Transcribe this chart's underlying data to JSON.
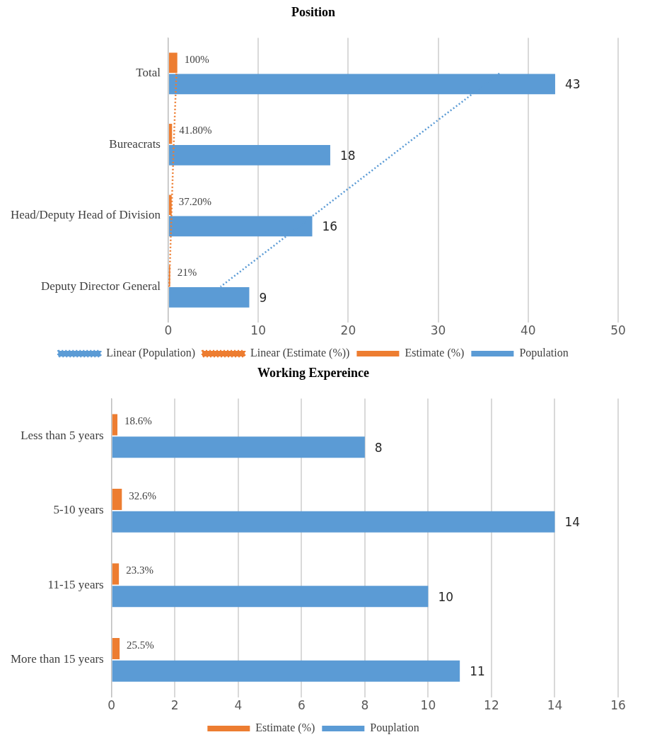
{
  "chart_data": [
    {
      "type": "bar",
      "orientation": "horizontal",
      "title": "Position",
      "categories": [
        "Total",
        "Bureacrats",
        "Head/Deputy Head of Division",
        "Deputy Director General"
      ],
      "series": [
        {
          "name": "Estimate (%)",
          "color": "#ed7d31",
          "values": [
            1,
            0.418,
            0.372,
            0.21
          ],
          "value_labels": [
            "100%",
            "41.80%",
            "37.20%",
            "21%"
          ]
        },
        {
          "name": "Population",
          "color": "#5b9bd5",
          "values": [
            43,
            18,
            16,
            9
          ],
          "value_labels": [
            "43",
            "18",
            "16",
            "9"
          ]
        },
        {
          "name": "Linear (Population)",
          "type": "line",
          "color": "#5b9bd5",
          "line_style": "dotted",
          "marker": "none",
          "values": [
            36.8,
            26.4,
            16.1,
            5.8
          ]
        },
        {
          "name": "Linear (Estimate (%))",
          "type": "line",
          "color": "#ed7d31",
          "line_style": "dotted",
          "marker": "none",
          "values": [
            0.9,
            0.6,
            0.35,
            0.1
          ]
        }
      ],
      "xlim": [
        0,
        50
      ],
      "xticks": [
        0,
        10,
        20,
        30,
        40,
        50
      ],
      "grid": "x",
      "legend": "bottom"
    },
    {
      "type": "bar",
      "orientation": "horizontal",
      "title": "Working Expereince",
      "categories": [
        "Less than 5 years",
        "5-10 years",
        "11-15 years",
        "More than 15 years"
      ],
      "series": [
        {
          "name": "Estimate (%)",
          "color": "#ed7d31",
          "values": [
            0.186,
            0.326,
            0.233,
            0.255
          ],
          "value_labels": [
            "18.6%",
            "32.6%",
            "23.3%",
            "25.5%"
          ]
        },
        {
          "name": "Pouplation",
          "color": "#5b9bd5",
          "values": [
            8,
            14,
            10,
            11
          ],
          "value_labels": [
            "8",
            "14",
            "10",
            "11"
          ]
        }
      ],
      "xlim": [
        0,
        16
      ],
      "xticks": [
        0,
        2,
        4,
        6,
        8,
        10,
        12,
        14,
        16
      ],
      "grid": "x",
      "legend": "bottom"
    }
  ]
}
